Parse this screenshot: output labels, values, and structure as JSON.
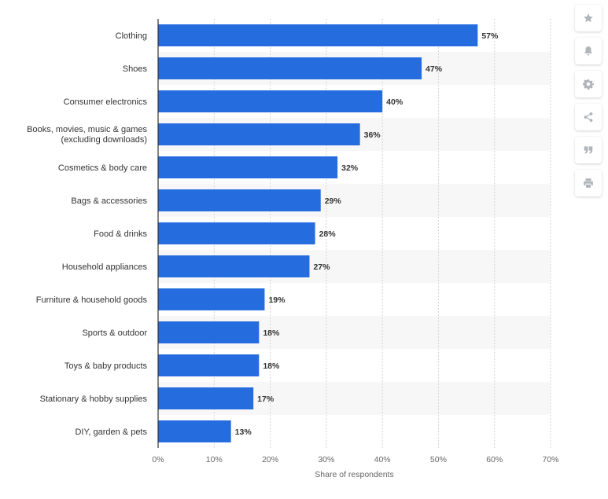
{
  "chart_data": {
    "type": "bar",
    "orientation": "horizontal",
    "categories": [
      "Clothing",
      "Shoes",
      "Consumer electronics",
      "Books, movies, music & games (excluding downloads)",
      "Cosmetics & body care",
      "Bags & accessories",
      "Food & drinks",
      "Household appliances",
      "Furniture & household goods",
      "Sports & outdoor",
      "Toys & baby products",
      "Stationary & hobby supplies",
      "DIY, garden & pets"
    ],
    "category_lines": [
      [
        "Clothing"
      ],
      [
        "Shoes"
      ],
      [
        "Consumer electronics"
      ],
      [
        "Books, movies, music & games",
        "(excluding downloads)"
      ],
      [
        "Cosmetics & body care"
      ],
      [
        "Bags & accessories"
      ],
      [
        "Food & drinks"
      ],
      [
        "Household appliances"
      ],
      [
        "Furniture & household goods"
      ],
      [
        "Sports & outdoor"
      ],
      [
        "Toys & baby products"
      ],
      [
        "Stationary & hobby supplies"
      ],
      [
        "DIY, garden & pets"
      ]
    ],
    "values": [
      57,
      47,
      40,
      36,
      32,
      29,
      28,
      27,
      19,
      18,
      18,
      17,
      13
    ],
    "value_labels": [
      "57%",
      "47%",
      "40%",
      "36%",
      "32%",
      "29%",
      "28%",
      "27%",
      "19%",
      "18%",
      "18%",
      "17%",
      "13%"
    ],
    "xlim": [
      0,
      70
    ],
    "ticks": [
      0,
      10,
      20,
      30,
      40,
      50,
      60,
      70
    ],
    "tick_labels": [
      "0%",
      "10%",
      "20%",
      "30%",
      "40%",
      "50%",
      "60%",
      "70%"
    ],
    "xlabel": "Share of respondents",
    "ylabel": "",
    "title": "",
    "grid": true,
    "bar_color": "#256cdf",
    "band_color": "#f7f7f7"
  },
  "toolbar": {
    "buttons": [
      {
        "name": "favorite-button",
        "icon": "star-icon"
      },
      {
        "name": "notification-button",
        "icon": "bell-icon"
      },
      {
        "name": "settings-button",
        "icon": "gear-icon"
      },
      {
        "name": "share-button",
        "icon": "share-icon"
      },
      {
        "name": "cite-button",
        "icon": "quote-icon"
      },
      {
        "name": "print-button",
        "icon": "print-icon"
      }
    ],
    "icon_color": "#b0b4bb"
  }
}
